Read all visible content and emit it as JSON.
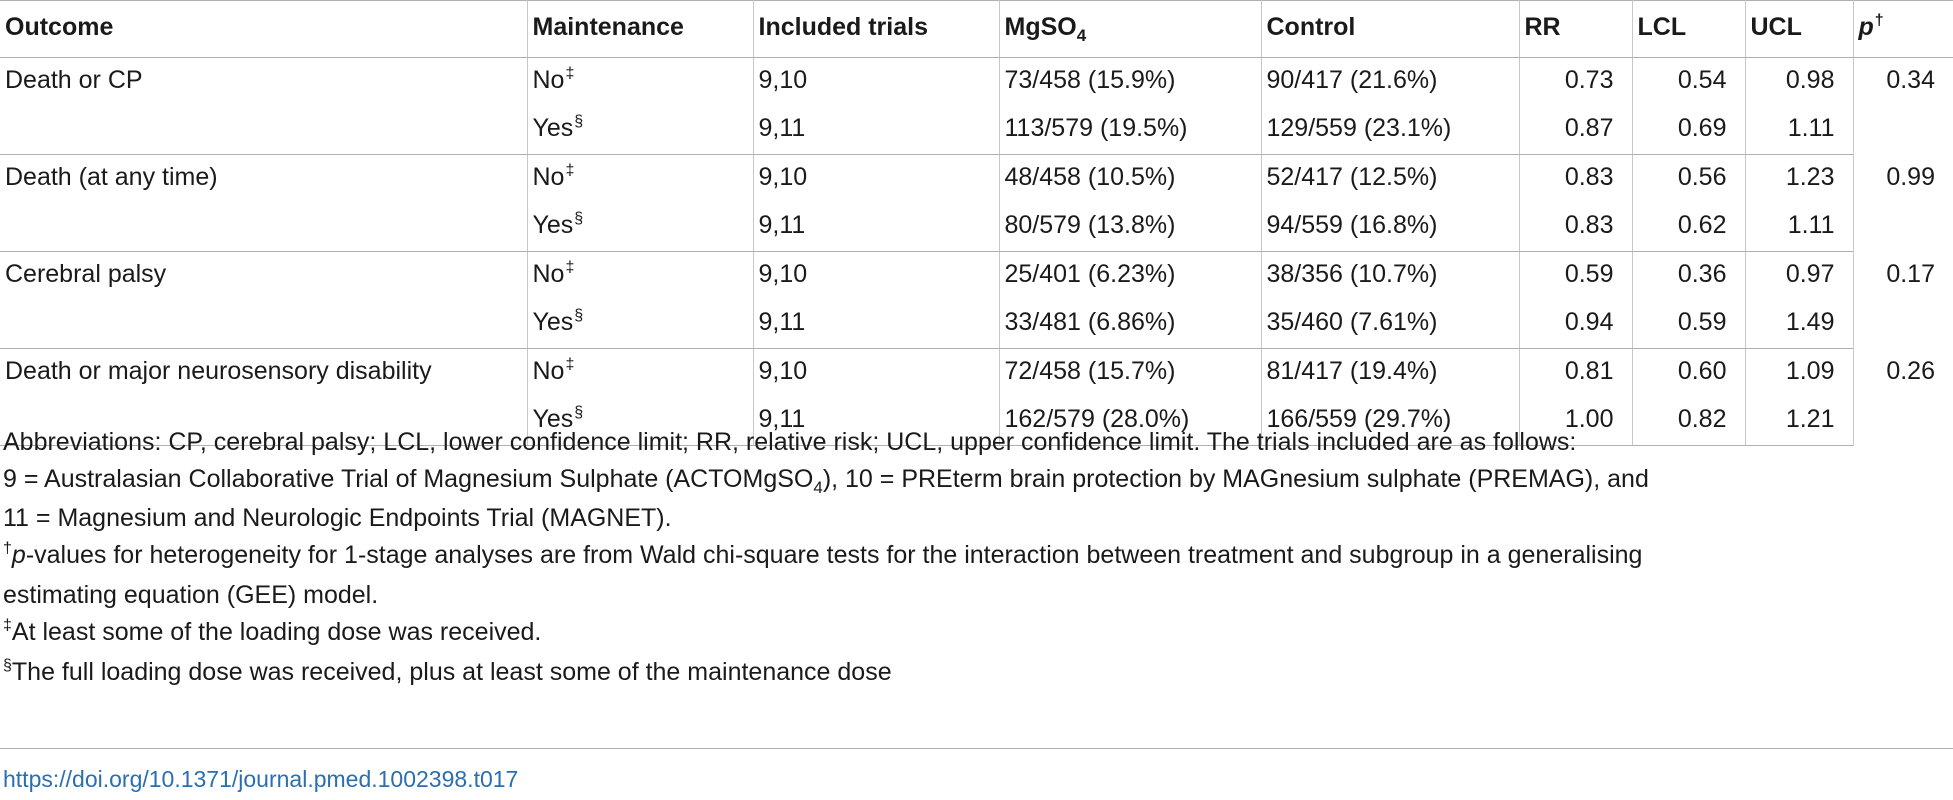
{
  "table": {
    "headers": {
      "outcome": "Outcome",
      "maintenance": "Maintenance",
      "included_trials": "Included trials",
      "mgso4": "MgSO",
      "mgso4_subscript": "4",
      "control": "Control",
      "rr": "RR",
      "lcl": "LCL",
      "ucl": "UCL",
      "p": "p",
      "p_mark": "†"
    },
    "groups": [
      {
        "outcome": "Death or CP",
        "p": "0.34",
        "rows": [
          {
            "maintenance": "No",
            "mark": "‡",
            "trials": "9,10",
            "mgso4": "73/458 (15.9%)",
            "control": "90/417 (21.6%)",
            "rr": "0.73",
            "lcl": "0.54",
            "ucl": "0.98"
          },
          {
            "maintenance": "Yes",
            "mark": "§",
            "trials": "9,11",
            "mgso4": "113/579 (19.5%)",
            "control": "129/559 (23.1%)",
            "rr": "0.87",
            "lcl": "0.69",
            "ucl": "1.11"
          }
        ]
      },
      {
        "outcome": "Death (at any time)",
        "p": "0.99",
        "rows": [
          {
            "maintenance": "No",
            "mark": "‡",
            "trials": "9,10",
            "mgso4": "48/458 (10.5%)",
            "control": "52/417 (12.5%)",
            "rr": "0.83",
            "lcl": "0.56",
            "ucl": "1.23"
          },
          {
            "maintenance": "Yes",
            "mark": "§",
            "trials": "9,11",
            "mgso4": "80/579 (13.8%)",
            "control": "94/559 (16.8%)",
            "rr": "0.83",
            "lcl": "0.62",
            "ucl": "1.11"
          }
        ]
      },
      {
        "outcome": "Cerebral palsy",
        "p": "0.17",
        "rows": [
          {
            "maintenance": "No",
            "mark": "‡",
            "trials": "9,10",
            "mgso4": "25/401 (6.23%)",
            "control": "38/356 (10.7%)",
            "rr": "0.59",
            "lcl": "0.36",
            "ucl": "0.97"
          },
          {
            "maintenance": "Yes",
            "mark": "§",
            "trials": "9,11",
            "mgso4": "33/481 (6.86%)",
            "control": "35/460 (7.61%)",
            "rr": "0.94",
            "lcl": "0.59",
            "ucl": "1.49"
          }
        ]
      },
      {
        "outcome": "Death or major neurosensory disability",
        "p": "0.26",
        "rows": [
          {
            "maintenance": "No",
            "mark": "‡",
            "trials": "9,10",
            "mgso4": "72/458 (15.7%)",
            "control": "81/417 (19.4%)",
            "rr": "0.81",
            "lcl": "0.60",
            "ucl": "1.09"
          },
          {
            "maintenance": "Yes",
            "mark": "§",
            "trials": "9,11",
            "mgso4": "162/579 (28.0%)",
            "control": "166/559 (29.7%)",
            "rr": "1.00",
            "lcl": "0.82",
            "ucl": "1.21"
          }
        ]
      }
    ]
  },
  "footnotes": {
    "abbreviations": "Abbreviations: CP, cerebral palsy; LCL, lower confidence limit; RR, relative risk; UCL, upper confidence limit. The trials included are as follows:",
    "trials_line1_a": "9 = Australasian Collaborative Trial of Magnesium Sulphate (ACTOMgSO",
    "trials_line1_sub": "4",
    "trials_line1_b": "), 10 = PREterm brain protection by MAGnesium sulphate (PREMAG), and",
    "trials_line2": "11 = Magnesium and Neurologic Endpoints Trial (MAGNET).",
    "dagger_mark": "†",
    "dagger_p": "p",
    "dagger_text_1": "-values for heterogeneity for 1-stage analyses are from Wald chi-square tests for the interaction between treatment and subgroup in a generalising",
    "dagger_text_2": "estimating equation (GEE) model.",
    "ddagger_mark": "‡",
    "ddagger_text": "At least some of the loading dose was received.",
    "section_mark": "§",
    "section_text": "The full loading dose was received, plus at least some of the maintenance dose"
  },
  "doi": "https://doi.org/10.1371/journal.pmed.1002398.t017"
}
